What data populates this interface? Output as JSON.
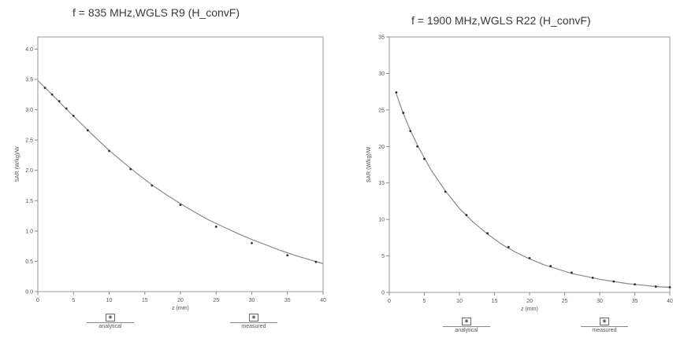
{
  "chart_data": [
    {
      "type": "line",
      "title": "f = 835 MHz,WGLS R9 (H_convF)",
      "xlabel": "z (mm)",
      "ylabel": "SAR (W/kg)/W",
      "xlim": [
        0,
        40
      ],
      "ylim": [
        0,
        4.2
      ],
      "xticks": [
        "0",
        "5",
        "10",
        "15",
        "20",
        "25",
        "30",
        "35",
        "40"
      ],
      "yticks": [
        "0.0",
        "0.5",
        "1.0",
        "1.5",
        "2.0",
        "2.5",
        "3.0",
        "3.5",
        "4.0"
      ],
      "legend": [
        "analytical",
        "measured"
      ],
      "series": [
        {
          "name": "analytical",
          "x": [
            0,
            2,
            4,
            6,
            8,
            10,
            12,
            14,
            16,
            18,
            20,
            22,
            24,
            26,
            28,
            30,
            32,
            34,
            36,
            38,
            40
          ],
          "y": [
            3.48,
            3.25,
            3.01,
            2.78,
            2.55,
            2.33,
            2.13,
            1.94,
            1.76,
            1.6,
            1.45,
            1.31,
            1.18,
            1.07,
            0.96,
            0.86,
            0.77,
            0.68,
            0.6,
            0.53,
            0.46
          ]
        },
        {
          "name": "measured",
          "x": [
            1,
            2,
            3,
            4,
            5,
            7,
            10,
            13,
            16,
            20,
            25,
            30,
            35,
            39
          ],
          "y": [
            3.36,
            3.25,
            3.14,
            3.02,
            2.9,
            2.66,
            2.32,
            2.02,
            1.75,
            1.43,
            1.07,
            0.8,
            0.6,
            0.49
          ]
        }
      ]
    },
    {
      "type": "line",
      "title": "f = 1900 MHz,WGLS R22 (H_convF)",
      "xlabel": "z (mm)",
      "ylabel": "SAR (W/kg)/W",
      "xlim": [
        0,
        40
      ],
      "ylim": [
        0,
        35
      ],
      "xticks": [
        "0",
        "5",
        "10",
        "15",
        "20",
        "25",
        "30",
        "35",
        "40"
      ],
      "yticks": [
        "0",
        "5",
        "10",
        "15",
        "20",
        "25",
        "30",
        "35"
      ],
      "legend": [
        "analytical",
        "measured"
      ],
      "series": [
        {
          "name": "analytical",
          "x": [
            1,
            2,
            3,
            4,
            5,
            6,
            8,
            10,
            12,
            14,
            16,
            18,
            20,
            22,
            24,
            26,
            28,
            30,
            32,
            34,
            36,
            38,
            40
          ],
          "y": [
            27.2,
            24.5,
            22.2,
            20.2,
            18.4,
            16.7,
            13.9,
            11.5,
            9.6,
            8.0,
            6.6,
            5.5,
            4.6,
            3.8,
            3.2,
            2.6,
            2.2,
            1.8,
            1.5,
            1.2,
            1.0,
            0.8,
            0.7
          ]
        },
        {
          "name": "measured",
          "x": [
            1,
            2,
            3,
            4,
            5,
            8,
            11,
            14,
            17,
            20,
            23,
            26,
            29,
            32,
            35,
            38,
            40
          ],
          "y": [
            27.4,
            24.6,
            22.1,
            20.0,
            18.3,
            13.8,
            10.6,
            8.1,
            6.2,
            4.7,
            3.6,
            2.7,
            2.0,
            1.5,
            1.1,
            0.8,
            0.7
          ]
        }
      ]
    }
  ]
}
